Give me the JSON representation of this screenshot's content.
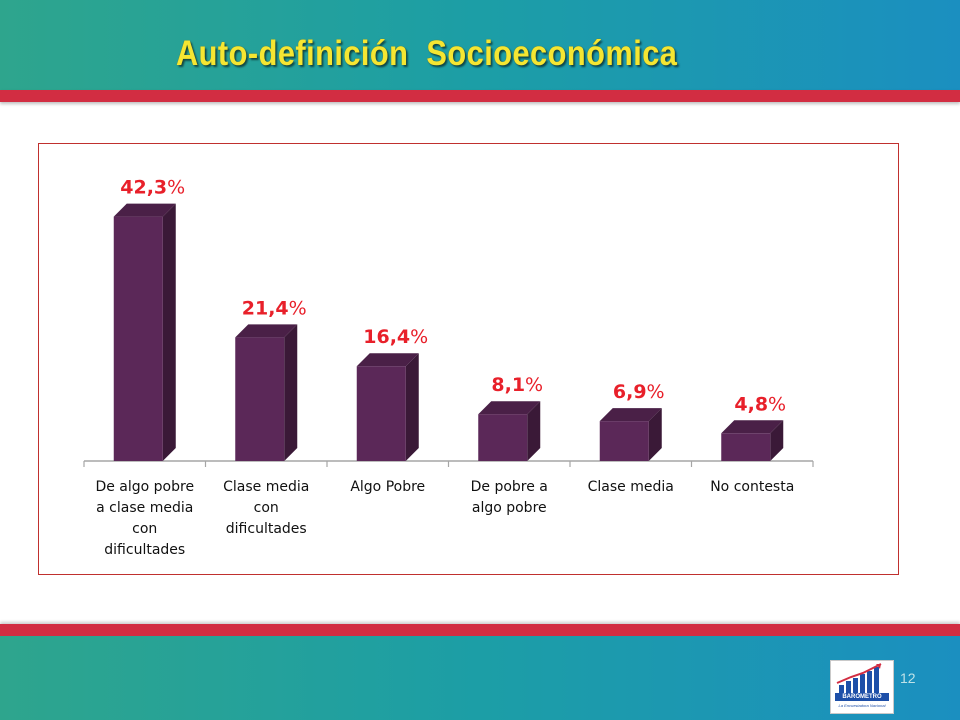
{
  "slide": {
    "title": "Auto-definición  Socioeconómica",
    "page_number": "12",
    "logo_text": "BAROMETRO",
    "logo_subtext": "La Encuestadora Nacional"
  },
  "colors": {
    "header": "#1c9ea6",
    "accent_line": "#d22d42",
    "title": "#f5e632",
    "bar_front": "#5b2858",
    "bar_side": "#3a1937",
    "bar_top": "#4a2047",
    "value_label": "#e8202a",
    "frame": "#c0302e"
  },
  "chart_data": {
    "type": "bar",
    "title": "",
    "xlabel": "",
    "ylabel": "",
    "categories": [
      "De algo pobre a clase media con dificultades",
      "Clase media con dificultades",
      "Algo Pobre",
      "De pobre a algo pobre",
      "Clase media",
      "No contesta"
    ],
    "category_lines": [
      [
        "De algo pobre",
        "a clase media",
        "con",
        "dificultades"
      ],
      [
        "Clase media",
        "con",
        "dificultades"
      ],
      [
        "Algo Pobre"
      ],
      [
        "De pobre a",
        "algo pobre"
      ],
      [
        "Clase media"
      ],
      [
        "No contesta"
      ]
    ],
    "values": [
      42.3,
      21.4,
      16.4,
      8.1,
      6.9,
      4.8
    ],
    "value_labels": [
      "42,3",
      "21,4",
      "16,4",
      "8,1",
      "6,9",
      "4,8"
    ],
    "value_suffix": "%",
    "ylim": [
      0,
      45
    ],
    "grid": false,
    "legend": "none"
  }
}
